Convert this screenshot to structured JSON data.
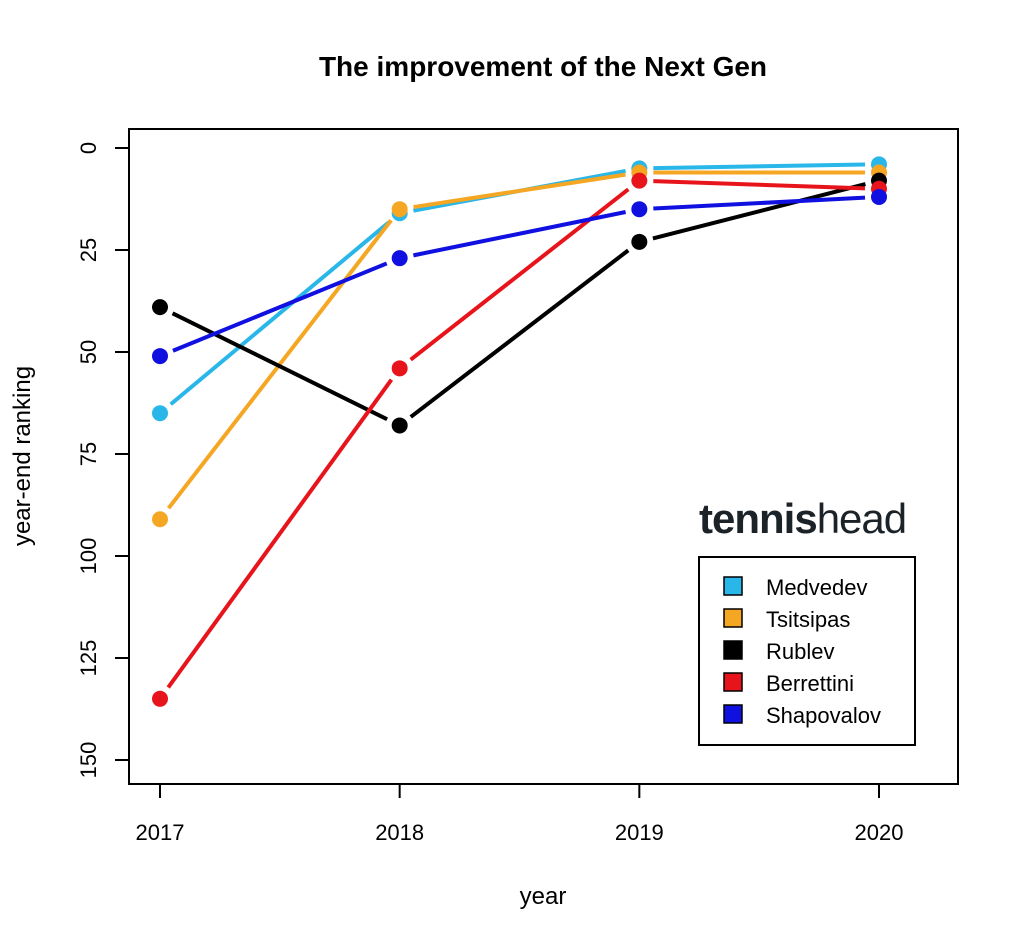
{
  "chart_data": {
    "type": "line",
    "title": "The improvement of the Next Gen",
    "xlabel": "year",
    "ylabel": "year-end ranking",
    "x": [
      2017,
      2018,
      2019,
      2020
    ],
    "x_tick_labels": [
      "2017",
      "2018",
      "2019",
      "2020"
    ],
    "y_ticks": [
      0,
      25,
      50,
      75,
      100,
      125,
      150
    ],
    "y_tick_labels": [
      "0",
      "25",
      "50",
      "75",
      "100",
      "125",
      "150"
    ],
    "ylim": [
      0,
      150
    ],
    "y_reversed": true,
    "grid": false,
    "legend_position": "bottom-right",
    "series": [
      {
        "name": "Medvedev",
        "color": "#29b6e8",
        "values": [
          65,
          16,
          5,
          4
        ]
      },
      {
        "name": "Tsitsipas",
        "color": "#f5a623",
        "values": [
          91,
          15,
          6,
          6
        ]
      },
      {
        "name": "Rublev",
        "color": "#000000",
        "values": [
          39,
          68,
          23,
          8
        ]
      },
      {
        "name": "Berrettini",
        "color": "#e8141c",
        "values": [
          135,
          54,
          8,
          10
        ]
      },
      {
        "name": "Shapovalov",
        "color": "#1010e0",
        "values": [
          51,
          27,
          15,
          12
        ]
      }
    ]
  },
  "watermark": {
    "text_bold": "tennis",
    "text_light": "head"
  }
}
